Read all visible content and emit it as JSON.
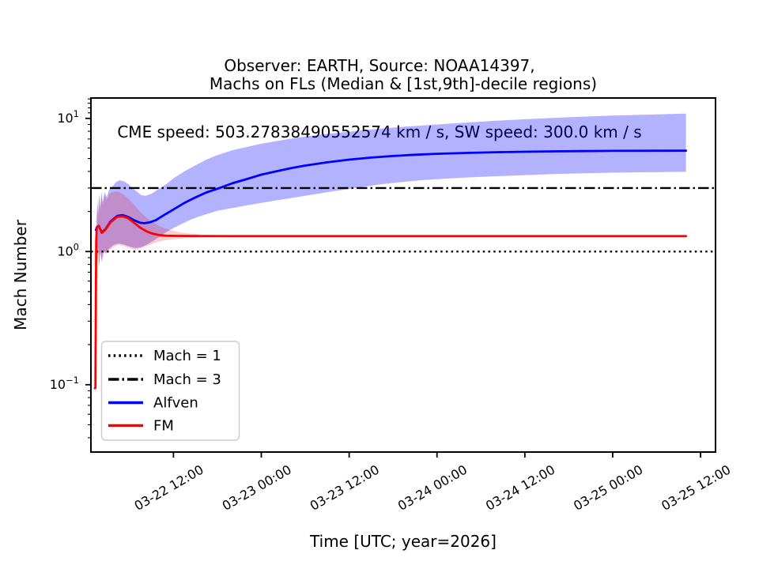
{
  "figure": {
    "suptitle_line1": "Observer: EARTH, Source: NOAA14397,",
    "suptitle_line2": "CME speed: 503.27838490552574 km / s, SW speed: 300.0 km / s",
    "background": "#ffffff",
    "text_color": "#000000"
  },
  "chart_data": {
    "type": "line",
    "title": "Machs on FLs (Median & [1st,9th]-decile regions)",
    "xlabel": "Time [UTC; year=2026]",
    "ylabel": "Mach Number",
    "x_unit": "hours since 2026-03-22 00:00 UTC",
    "y_scale": "log",
    "ylim": [
      0.0312,
      14.23
    ],
    "xlim": [
      0.73,
      86.04
    ],
    "grid": false,
    "x_ticks": [
      {
        "t": 12,
        "label": "03-22 12:00"
      },
      {
        "t": 24,
        "label": "03-23 00:00"
      },
      {
        "t": 36,
        "label": "03-23 12:00"
      },
      {
        "t": 48,
        "label": "03-24 00:00"
      },
      {
        "t": 60,
        "label": "03-24 12:00"
      },
      {
        "t": 72,
        "label": "03-25 00:00"
      },
      {
        "t": 84,
        "label": "03-25 12:00"
      }
    ],
    "y_ticks": [
      {
        "value": 10,
        "base": "10",
        "exponent": "1"
      },
      {
        "value": 1,
        "base": "10",
        "exponent": "0"
      },
      {
        "value": 0.1,
        "base": "10",
        "exponent": "−1"
      }
    ],
    "hlines": [
      {
        "label": "Mach = 1",
        "y": 1,
        "style": "dotted",
        "color": "#000000"
      },
      {
        "label": "Mach = 3",
        "y": 3,
        "style": "dashdot",
        "color": "#000000"
      }
    ],
    "legend": {
      "position": "lower left",
      "entries": [
        {
          "label": "Mach = 1",
          "style": "dotted",
          "color": "#000000"
        },
        {
          "label": "Mach = 3",
          "style": "dashdot",
          "color": "#000000"
        },
        {
          "label": "Alfven",
          "style": "solid",
          "color": "#0000ff"
        },
        {
          "label": "FM",
          "style": "solid",
          "color": "#ff0000"
        }
      ]
    },
    "series": [
      {
        "name": "Alfven",
        "color": "#0000ff",
        "band_color": "#0000ff",
        "band_opacity": 0.3,
        "median": [
          [
            1.4,
            1.45
          ],
          [
            1.55,
            1.53
          ],
          [
            1.8,
            1.56
          ],
          [
            2.2,
            1.39
          ],
          [
            2.7,
            1.47
          ],
          [
            3.4,
            1.68
          ],
          [
            4.3,
            1.85
          ],
          [
            5.0,
            1.88
          ],
          [
            5.8,
            1.82
          ],
          [
            6.6,
            1.72
          ],
          [
            7.4,
            1.65
          ],
          [
            8.0,
            1.63
          ],
          [
            8.8,
            1.66
          ],
          [
            9.6,
            1.72
          ],
          [
            10.5,
            1.85
          ],
          [
            12,
            2.07
          ],
          [
            13.5,
            2.32
          ],
          [
            15,
            2.55
          ],
          [
            16.5,
            2.78
          ],
          [
            18.3,
            3.0
          ],
          [
            20,
            3.25
          ],
          [
            22,
            3.5
          ],
          [
            24,
            3.78
          ],
          [
            26,
            4.0
          ],
          [
            28,
            4.22
          ],
          [
            30,
            4.42
          ],
          [
            33,
            4.68
          ],
          [
            36,
            4.9
          ],
          [
            39,
            5.08
          ],
          [
            42,
            5.22
          ],
          [
            45,
            5.33
          ],
          [
            48,
            5.42
          ],
          [
            52,
            5.5
          ],
          [
            56,
            5.57
          ],
          [
            60,
            5.62
          ],
          [
            64,
            5.66
          ],
          [
            68,
            5.68
          ],
          [
            72,
            5.7
          ],
          [
            76,
            5.71
          ],
          [
            82,
            5.72
          ]
        ],
        "band_upper": [
          [
            1.5,
            1.7
          ],
          [
            1.6,
            2.45
          ],
          [
            1.7,
            1.9
          ],
          [
            1.85,
            2.75
          ],
          [
            2.0,
            2.1
          ],
          [
            2.15,
            2.8
          ],
          [
            2.35,
            2.35
          ],
          [
            2.6,
            2.8
          ],
          [
            2.9,
            2.55
          ],
          [
            3.2,
            2.9
          ],
          [
            3.6,
            3.05
          ],
          [
            4.1,
            3.3
          ],
          [
            4.6,
            3.42
          ],
          [
            5.2,
            3.38
          ],
          [
            5.8,
            3.22
          ],
          [
            6.4,
            3.0
          ],
          [
            7.0,
            2.82
          ],
          [
            7.6,
            2.65
          ],
          [
            8.2,
            2.62
          ],
          [
            9.0,
            2.72
          ],
          [
            10,
            2.95
          ],
          [
            11,
            3.2
          ],
          [
            12,
            3.55
          ],
          [
            13.5,
            4.0
          ],
          [
            15,
            4.45
          ],
          [
            16.5,
            4.9
          ],
          [
            18,
            5.3
          ],
          [
            20,
            5.75
          ],
          [
            22,
            6.1
          ],
          [
            24,
            6.45
          ],
          [
            27,
            6.9
          ],
          [
            30,
            7.3
          ],
          [
            33,
            7.65
          ],
          [
            36,
            7.95
          ],
          [
            40,
            8.35
          ],
          [
            44,
            8.7
          ],
          [
            48,
            9.0
          ],
          [
            52,
            9.3
          ],
          [
            56,
            9.6
          ],
          [
            60,
            9.85
          ],
          [
            64,
            10.1
          ],
          [
            68,
            10.3
          ],
          [
            72,
            10.5
          ],
          [
            76,
            10.65
          ],
          [
            80,
            10.8
          ],
          [
            82,
            10.85
          ]
        ],
        "band_lower": [
          [
            1.5,
            1.25
          ],
          [
            1.6,
            0.82
          ],
          [
            1.7,
            1.1
          ],
          [
            1.85,
            0.78
          ],
          [
            2.0,
            1.02
          ],
          [
            2.2,
            0.85
          ],
          [
            2.45,
            1.0
          ],
          [
            2.8,
            0.98
          ],
          [
            3.2,
            1.05
          ],
          [
            3.8,
            1.12
          ],
          [
            4.5,
            1.15
          ],
          [
            5.2,
            1.13
          ],
          [
            6.0,
            1.09
          ],
          [
            6.8,
            1.06
          ],
          [
            7.6,
            1.08
          ],
          [
            8.4,
            1.13
          ],
          [
            9.2,
            1.2
          ],
          [
            10,
            1.28
          ],
          [
            11,
            1.4
          ],
          [
            12,
            1.5
          ],
          [
            13,
            1.6
          ],
          [
            14.5,
            1.75
          ],
          [
            16,
            1.87
          ],
          [
            18,
            2.02
          ],
          [
            20,
            2.12
          ],
          [
            22,
            2.22
          ],
          [
            24,
            2.32
          ],
          [
            26,
            2.42
          ],
          [
            28,
            2.52
          ],
          [
            31,
            2.68
          ],
          [
            34,
            2.85
          ],
          [
            37,
            3.0
          ],
          [
            40,
            3.18
          ],
          [
            43,
            3.32
          ],
          [
            46,
            3.44
          ],
          [
            49,
            3.52
          ],
          [
            52,
            3.6
          ],
          [
            56,
            3.68
          ],
          [
            60,
            3.75
          ],
          [
            64,
            3.82
          ],
          [
            68,
            3.87
          ],
          [
            72,
            3.91
          ],
          [
            76,
            3.94
          ],
          [
            82,
            3.97
          ]
        ]
      },
      {
        "name": "FM",
        "color": "#ff0000",
        "band_color": "#ff0000",
        "band_opacity": 0.2,
        "median": [
          [
            1.28,
            0.094
          ],
          [
            1.34,
            0.095
          ],
          [
            1.4,
            0.5
          ],
          [
            1.45,
            1.2
          ],
          [
            1.52,
            1.52
          ],
          [
            1.8,
            1.55
          ],
          [
            2.2,
            1.38
          ],
          [
            2.7,
            1.46
          ],
          [
            3.4,
            1.66
          ],
          [
            4.3,
            1.82
          ],
          [
            5.0,
            1.84
          ],
          [
            5.8,
            1.78
          ],
          [
            6.6,
            1.65
          ],
          [
            7.4,
            1.52
          ],
          [
            8.2,
            1.43
          ],
          [
            9.0,
            1.37
          ],
          [
            10,
            1.33
          ],
          [
            11,
            1.315
          ],
          [
            12.5,
            1.31
          ],
          [
            15,
            1.307
          ],
          [
            20,
            1.305
          ],
          [
            30,
            1.305
          ],
          [
            45,
            1.305
          ],
          [
            60,
            1.305
          ],
          [
            82,
            1.305
          ]
        ],
        "band_upper": [
          [
            1.5,
            1.7
          ],
          [
            1.6,
            2.35
          ],
          [
            1.7,
            1.85
          ],
          [
            1.85,
            2.6
          ],
          [
            2.0,
            2.05
          ],
          [
            2.15,
            2.65
          ],
          [
            2.35,
            2.25
          ],
          [
            2.6,
            2.65
          ],
          [
            2.9,
            2.45
          ],
          [
            3.2,
            2.7
          ],
          [
            3.6,
            2.78
          ],
          [
            4.1,
            2.82
          ],
          [
            4.6,
            2.8
          ],
          [
            5.2,
            2.68
          ],
          [
            5.8,
            2.5
          ],
          [
            6.4,
            2.32
          ],
          [
            7.0,
            2.12
          ],
          [
            7.6,
            1.95
          ],
          [
            8.2,
            1.82
          ],
          [
            9.0,
            1.68
          ],
          [
            10,
            1.56
          ],
          [
            11,
            1.48
          ],
          [
            12,
            1.43
          ],
          [
            13,
            1.39
          ],
          [
            14.5,
            1.36
          ],
          [
            16,
            1.34
          ],
          [
            18,
            1.33
          ],
          [
            20,
            1.32
          ],
          [
            21.5,
            1.32
          ]
        ],
        "band_lower": [
          [
            1.5,
            1.2
          ],
          [
            1.6,
            0.8
          ],
          [
            1.7,
            1.05
          ],
          [
            1.85,
            0.75
          ],
          [
            2.0,
            1.0
          ],
          [
            2.2,
            0.82
          ],
          [
            2.45,
            0.98
          ],
          [
            2.8,
            0.96
          ],
          [
            3.2,
            1.02
          ],
          [
            3.8,
            1.08
          ],
          [
            4.5,
            1.12
          ],
          [
            5.2,
            1.1
          ],
          [
            6.0,
            1.06
          ],
          [
            6.8,
            1.03
          ],
          [
            7.6,
            1.06
          ],
          [
            8.4,
            1.1
          ],
          [
            9.2,
            1.15
          ],
          [
            10,
            1.19
          ],
          [
            11,
            1.22
          ],
          [
            12,
            1.24
          ],
          [
            13,
            1.25
          ],
          [
            15,
            1.27
          ],
          [
            17,
            1.28
          ],
          [
            19,
            1.285
          ],
          [
            21.5,
            1.29
          ]
        ]
      }
    ]
  }
}
